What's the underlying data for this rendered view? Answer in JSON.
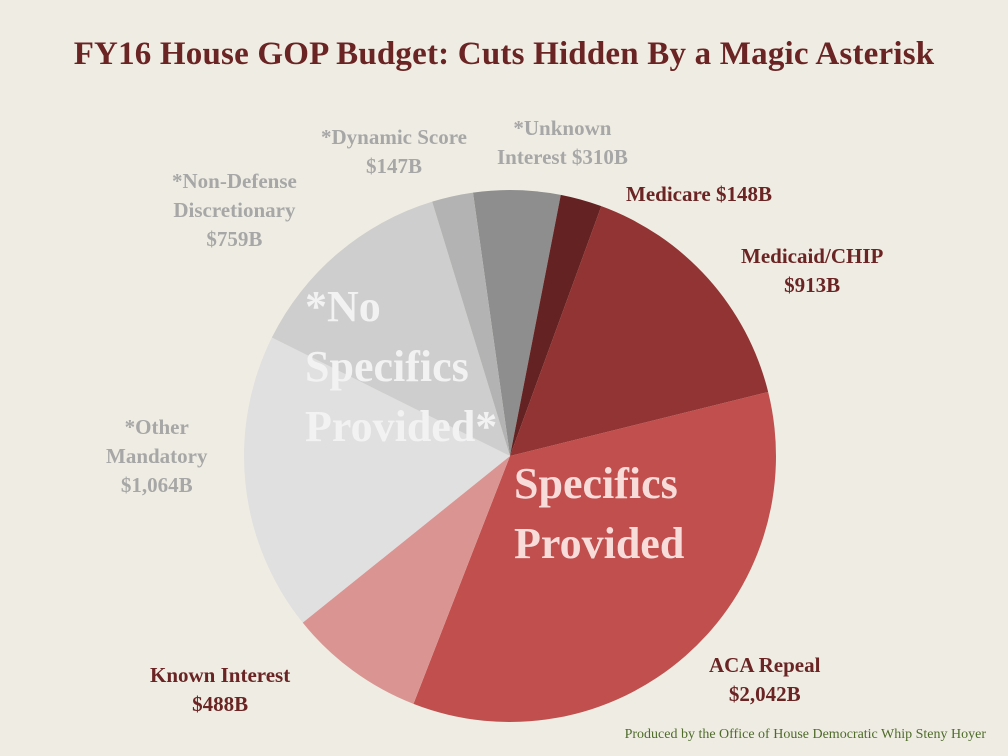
{
  "chart_data": {
    "type": "pie",
    "title": "FY16 House GOP Budget: Cuts Hidden By a Magic Asterisk",
    "slices": [
      {
        "name": "*Unknown Interest",
        "value": 310,
        "label": "$310B",
        "color": "#8e8e8e",
        "label_color": "#a7a7a7"
      },
      {
        "name": "Medicare",
        "value": 148,
        "label": "$148B",
        "color": "#652222",
        "label_color": "#6b2424"
      },
      {
        "name": "Medicaid/CHIP",
        "value": 913,
        "label": "$913B",
        "color": "#913433",
        "label_color": "#6b2424"
      },
      {
        "name": "ACA Repeal",
        "value": 2042,
        "label": "$2,042B",
        "color": "#c04f4e",
        "label_color": "#6b2424"
      },
      {
        "name": "Known Interest",
        "value": 488,
        "label": "$488B",
        "color": "#da9593",
        "label_color": "#6b2424"
      },
      {
        "name": "*Other Mandatory",
        "value": 1064,
        "label": "$1,064B",
        "color": "#e0e0e0",
        "label_color": "#a7a7a7"
      },
      {
        "name": "*Non-Defense Discretionary",
        "value": 759,
        "label": "$759B",
        "color": "#cecece",
        "label_color": "#a7a7a7"
      },
      {
        "name": "*Dynamic Score",
        "value": 147,
        "label": "$147B",
        "color": "#b3b3b3",
        "label_color": "#a7a7a7"
      }
    ],
    "groups": [
      {
        "name": "no_specifics",
        "lines": [
          "*No",
          "Specifics",
          "Provided*"
        ],
        "color": "#f2f2f2"
      },
      {
        "name": "specifics",
        "lines": [
          "Specifics",
          "Provided"
        ],
        "color": "#f7dcda"
      }
    ]
  },
  "labels": {
    "unknown_interest": [
      "*Unknown",
      "Interest $310B"
    ],
    "medicare": [
      "Medicare $148B"
    ],
    "medicaid": [
      "Medicaid/CHIP",
      "$913B"
    ],
    "aca": [
      "ACA Repeal",
      "$2,042B"
    ],
    "known_interest": [
      "Known Interest",
      "$488B"
    ],
    "other_mandatory": [
      "*Other",
      "Mandatory",
      "$1,064B"
    ],
    "non_defense": [
      "*Non-Defense",
      "Discretionary",
      "$759B"
    ],
    "dynamic_score": [
      "*Dynamic Score",
      "$147B"
    ]
  },
  "credit": "Produced by the Office of House Democratic Whip Steny Hoyer"
}
